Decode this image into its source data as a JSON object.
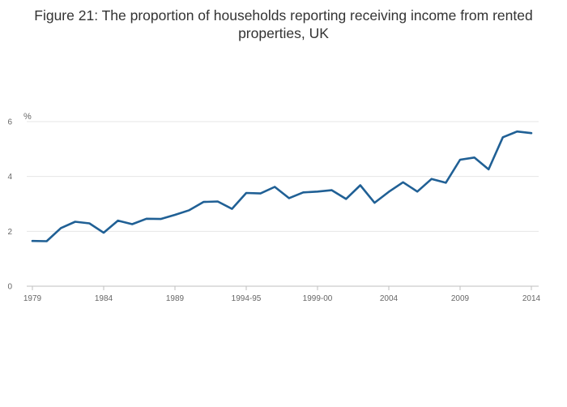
{
  "chart_data": {
    "type": "line",
    "title": "Figure 21: The proportion of households reporting receiving income from rented properties, UK",
    "ylabel": "%",
    "xlabel": "",
    "ylim": [
      0,
      6
    ],
    "yticks": [
      0,
      2,
      4,
      6
    ],
    "xlim": [
      1979,
      2014
    ],
    "xticks": [
      {
        "value": 1979,
        "label": "1979"
      },
      {
        "value": 1984,
        "label": "1984"
      },
      {
        "value": 1989,
        "label": "1989"
      },
      {
        "value": 1994,
        "label": "1994-95"
      },
      {
        "value": 1999,
        "label": "1999-00"
      },
      {
        "value": 2004,
        "label": "2004"
      },
      {
        "value": 2009,
        "label": "2009"
      },
      {
        "value": 2014,
        "label": "2014"
      }
    ],
    "grid": true,
    "legend": "none",
    "series": [
      {
        "color": "#206095",
        "x": [
          1979,
          1980,
          1981,
          1982,
          1983,
          1984,
          1985,
          1986,
          1987,
          1988,
          1989,
          1990,
          1991,
          1992,
          1993,
          1994,
          1995,
          1996,
          1997,
          1998,
          1999,
          2000,
          2001,
          2002,
          2003,
          2004,
          2005,
          2006,
          2007,
          2008,
          2009,
          2010,
          2011,
          2012,
          2013,
          2014
        ],
        "values": [
          1.65,
          1.64,
          2.12,
          2.35,
          2.29,
          1.95,
          2.39,
          2.26,
          2.46,
          2.45,
          2.6,
          2.77,
          3.07,
          3.09,
          2.82,
          3.4,
          3.38,
          3.62,
          3.21,
          3.42,
          3.45,
          3.5,
          3.18,
          3.68,
          3.04,
          3.44,
          3.79,
          3.45,
          3.91,
          3.77,
          4.61,
          4.69,
          4.26,
          5.43,
          5.64,
          5.58
        ]
      }
    ]
  }
}
